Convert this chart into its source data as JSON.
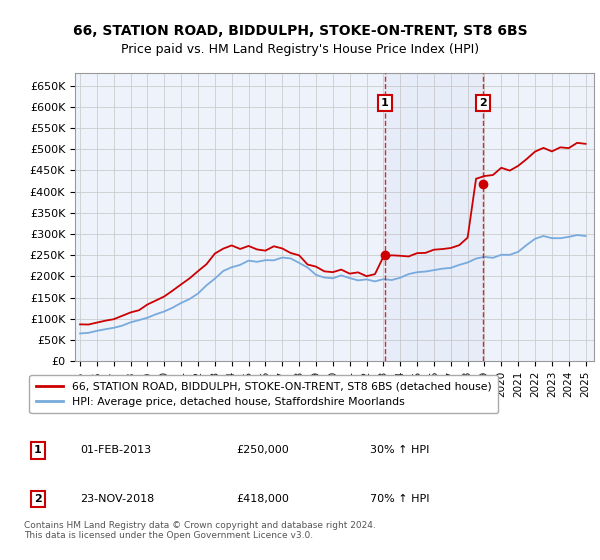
{
  "title": "66, STATION ROAD, BIDDULPH, STOKE-ON-TRENT, ST8 6BS",
  "subtitle": "Price paid vs. HM Land Registry's House Price Index (HPI)",
  "ylim": [
    0,
    680000
  ],
  "yticks": [
    0,
    50000,
    100000,
    150000,
    200000,
    250000,
    300000,
    350000,
    400000,
    450000,
    500000,
    550000,
    600000,
    650000
  ],
  "xlim_start": 1994.7,
  "xlim_end": 2025.5,
  "bg_color": "#eef2fb",
  "grid_color": "#cccccc",
  "sale1_x": 2013.08,
  "sale1_y": 250000,
  "sale2_x": 2018.9,
  "sale2_y": 418000,
  "legend_line1": "66, STATION ROAD, BIDDULPH, STOKE-ON-TRENT, ST8 6BS (detached house)",
  "legend_line2": "HPI: Average price, detached house, Staffordshire Moorlands",
  "annotation1_label": "1",
  "annotation1_date": "01-FEB-2013",
  "annotation1_price": "£250,000",
  "annotation1_hpi": "30% ↑ HPI",
  "annotation2_label": "2",
  "annotation2_date": "23-NOV-2018",
  "annotation2_price": "£418,000",
  "annotation2_hpi": "70% ↑ HPI",
  "footer": "Contains HM Land Registry data © Crown copyright and database right 2024.\nThis data is licensed under the Open Government Licence v3.0.",
  "line_color_property": "#cc0000",
  "line_color_hpi": "#77aadd",
  "vline_color": "#cc0000",
  "hpi_years": [
    1995.0,
    1995.5,
    1996.0,
    1996.5,
    1997.0,
    1997.5,
    1998.0,
    1998.5,
    1999.0,
    1999.5,
    2000.0,
    2000.5,
    2001.0,
    2001.5,
    2002.0,
    2002.5,
    2003.0,
    2003.5,
    2004.0,
    2004.5,
    2005.0,
    2005.5,
    2006.0,
    2006.5,
    2007.0,
    2007.5,
    2008.0,
    2008.5,
    2009.0,
    2009.5,
    2010.0,
    2010.5,
    2011.0,
    2011.5,
    2012.0,
    2012.5,
    2013.0,
    2013.5,
    2014.0,
    2014.5,
    2015.0,
    2015.5,
    2016.0,
    2016.5,
    2017.0,
    2017.5,
    2018.0,
    2018.5,
    2019.0,
    2019.5,
    2020.0,
    2020.5,
    2021.0,
    2021.5,
    2022.0,
    2022.5,
    2023.0,
    2023.5,
    2024.0,
    2024.5,
    2025.0
  ],
  "hpi_vals": [
    65000,
    67000,
    71000,
    74000,
    79000,
    84000,
    90000,
    96000,
    103000,
    110000,
    118000,
    127000,
    137000,
    150000,
    163000,
    180000,
    197000,
    212000,
    224000,
    231000,
    233000,
    235000,
    238000,
    242000,
    246000,
    242000,
    235000,
    220000,
    205000,
    198000,
    197000,
    198000,
    196000,
    193000,
    191000,
    191000,
    193000,
    196000,
    200000,
    205000,
    208000,
    211000,
    215000,
    219000,
    224000,
    229000,
    234000,
    239000,
    245000,
    249000,
    250000,
    252000,
    260000,
    272000,
    285000,
    292000,
    293000,
    291000,
    292000,
    294000,
    297000
  ],
  "prop_years": [
    1995.0,
    1995.5,
    1996.0,
    1996.5,
    1997.0,
    1997.5,
    1998.0,
    1998.5,
    1999.0,
    1999.5,
    2000.0,
    2000.5,
    2001.0,
    2001.5,
    2002.0,
    2002.5,
    2003.0,
    2003.5,
    2004.0,
    2004.5,
    2005.0,
    2005.5,
    2006.0,
    2006.5,
    2007.0,
    2007.5,
    2008.0,
    2008.5,
    2009.0,
    2009.5,
    2010.0,
    2010.5,
    2011.0,
    2011.5,
    2012.0,
    2012.5,
    2013.0,
    2013.5,
    2014.0,
    2014.5,
    2015.0,
    2015.5,
    2016.0,
    2016.5,
    2017.0,
    2017.5,
    2018.0,
    2018.5,
    2019.0,
    2019.5,
    2020.0,
    2020.5,
    2021.0,
    2021.5,
    2022.0,
    2022.5,
    2023.0,
    2023.5,
    2024.0,
    2024.5,
    2025.0
  ],
  "prop_vals": [
    85000,
    87000,
    91000,
    95000,
    100000,
    107000,
    115000,
    123000,
    132000,
    142000,
    154000,
    167000,
    180000,
    196000,
    213000,
    233000,
    252000,
    265000,
    272000,
    270000,
    266000,
    263000,
    262000,
    264000,
    266000,
    260000,
    251000,
    235000,
    220000,
    213000,
    212000,
    213000,
    211000,
    208000,
    206000,
    207000,
    250000,
    245000,
    243000,
    248000,
    252000,
    256000,
    261000,
    267000,
    273000,
    280000,
    290000,
    418000,
    435000,
    442000,
    445000,
    448000,
    460000,
    475000,
    495000,
    505000,
    504000,
    501000,
    503000,
    507000,
    515000
  ]
}
